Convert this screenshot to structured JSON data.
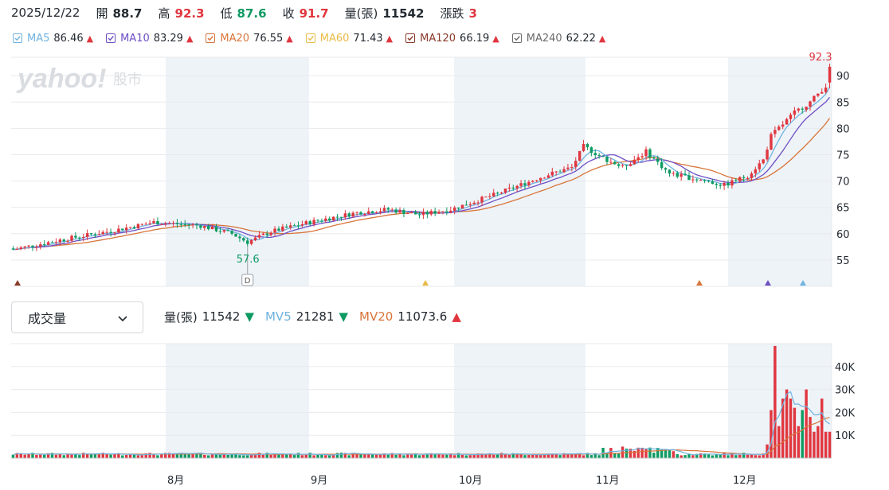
{
  "topbar": {
    "date": "2025/12/22",
    "open_label": "開",
    "open": "88.7",
    "high_label": "高",
    "high": "92.3",
    "low_label": "低",
    "low": "87.6",
    "close_label": "收",
    "close": "91.7",
    "volume_label": "量(張)",
    "volume": "11542",
    "change_label": "漲跌",
    "change": "3"
  },
  "ma_legend": [
    {
      "name": "MA5",
      "value": "86.46",
      "trend": "▲",
      "color": "#6fb3e0"
    },
    {
      "name": "MA10",
      "value": "83.29",
      "trend": "▲",
      "color": "#6e4fc4"
    },
    {
      "name": "MA20",
      "value": "76.55",
      "trend": "▲",
      "color": "#d8753a"
    },
    {
      "name": "MA60",
      "value": "71.43",
      "trend": "▲",
      "color": "#e8bb46"
    },
    {
      "name": "MA120",
      "value": "66.19",
      "trend": "▲",
      "color": "#8a3a2a"
    },
    {
      "name": "MA240",
      "value": "62.22",
      "trend": "▲",
      "color": "#6b6b6b"
    }
  ],
  "watermark": {
    "brand": "yahoo!",
    "suffix": "股市"
  },
  "volume_selector": {
    "label": "成交量"
  },
  "volume_legend": {
    "volume_label": "量(張)",
    "volume": "11542",
    "volume_trend": "▼",
    "mv5_label": "MV5",
    "mv5": "21281",
    "mv5_trend": "▼",
    "mv20_label": "MV20",
    "mv20": "11073.6",
    "mv20_trend": "▲"
  },
  "colors": {
    "up": "#e0363f",
    "down": "#0e9a62",
    "ma5": "#6fb3e0",
    "ma10": "#6e4fc4",
    "ma20": "#d8753a",
    "shade": "#eef3f8",
    "grid": "#e8eaed"
  },
  "chart_data": {
    "type": "candlestick",
    "price_axis": {
      "ticks": [
        "55",
        "60",
        "65",
        "70",
        "75",
        "80",
        "85",
        "90"
      ],
      "range": [
        50,
        93.5
      ]
    },
    "volume_axis": {
      "ticks": [
        "10K",
        "20K",
        "30K",
        "40K"
      ],
      "range": [
        0,
        50000
      ]
    },
    "x_labels": [
      "8月",
      "9月",
      "10月",
      "11月",
      "12月"
    ],
    "annotations": {
      "max_label": "92.3",
      "min_label": "57.6",
      "marker_label": "D"
    },
    "markers": [
      {
        "color": "#8a3a2a"
      },
      {
        "color": "#e8bb46"
      },
      {
        "color": "#d8753a"
      },
      {
        "color": "#6e4fc4"
      },
      {
        "color": "#6fb3e0"
      }
    ],
    "ohlc": [],
    "volumes": [],
    "ma5": [],
    "ma10": [],
    "ma20": []
  }
}
